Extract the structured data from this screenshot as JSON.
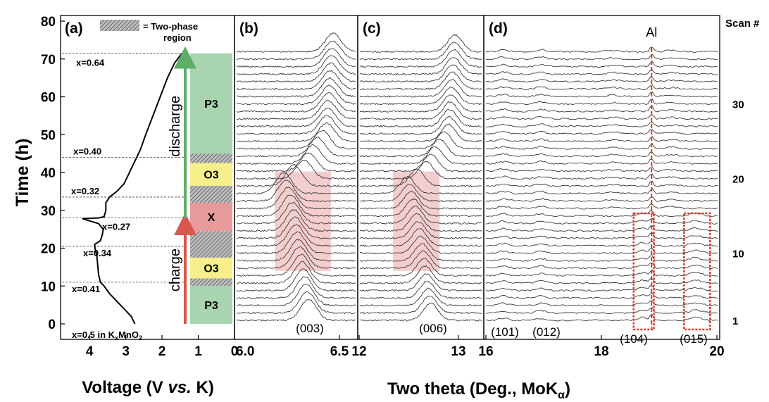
{
  "colors": {
    "two_phase_fill": "#8a8a8a",
    "p3_fill": "#a8d5b0",
    "o3_fill": "#f6ef8c",
    "x_fill": "#e79a9a",
    "highlight": "#f3c9ca",
    "discharge_arrow": "#5fad69",
    "charge_arrow": "#d8584d",
    "al_line": "#e0302a",
    "box_line": "#d63a2e",
    "trace": "#3a3a3a"
  },
  "chart_data": [
    {
      "panel": "(a)",
      "type": "line",
      "xlabel": "Voltage (V vs. K)",
      "ylabel": "Time (h)",
      "xlim": [
        4.8,
        0
      ],
      "ylim": [
        0,
        80
      ],
      "x_ticks": [
        "4",
        "3",
        "2",
        "1",
        "0"
      ],
      "y_ticks": [
        "0",
        "10",
        "20",
        "30",
        "40",
        "50",
        "60",
        "70",
        "80"
      ],
      "legend": "= Two-phase region",
      "voltage_curve": [
        {
          "x": 2.75,
          "y": 0
        },
        {
          "x": 2.85,
          "y": 2
        },
        {
          "x": 3.05,
          "y": 4
        },
        {
          "x": 3.25,
          "y": 6
        },
        {
          "x": 3.45,
          "y": 8
        },
        {
          "x": 3.6,
          "y": 10
        },
        {
          "x": 3.7,
          "y": 11
        },
        {
          "x": 3.75,
          "y": 13
        },
        {
          "x": 3.78,
          "y": 16
        },
        {
          "x": 3.8,
          "y": 18
        },
        {
          "x": 3.85,
          "y": 20
        },
        {
          "x": 3.86,
          "y": 21
        },
        {
          "x": 3.7,
          "y": 22
        },
        {
          "x": 3.65,
          "y": 23.5
        },
        {
          "x": 3.62,
          "y": 25
        },
        {
          "x": 3.75,
          "y": 26.5
        },
        {
          "x": 4.1,
          "y": 27.5
        },
        {
          "x": 4.2,
          "y": 27.8
        },
        {
          "x": 3.75,
          "y": 28
        },
        {
          "x": 3.6,
          "y": 28.3
        },
        {
          "x": 3.55,
          "y": 30
        },
        {
          "x": 3.55,
          "y": 32
        },
        {
          "x": 3.45,
          "y": 33.5
        },
        {
          "x": 3.25,
          "y": 35
        },
        {
          "x": 3.05,
          "y": 37
        },
        {
          "x": 2.9,
          "y": 40
        },
        {
          "x": 2.75,
          "y": 43
        },
        {
          "x": 2.6,
          "y": 46
        },
        {
          "x": 2.45,
          "y": 50
        },
        {
          "x": 2.25,
          "y": 55
        },
        {
          "x": 2.05,
          "y": 60
        },
        {
          "x": 1.85,
          "y": 65
        },
        {
          "x": 1.65,
          "y": 69
        },
        {
          "x": 1.45,
          "y": 71.5
        }
      ],
      "levels": [
        {
          "label": "x=0.5 in KxMnO2",
          "y": 0
        },
        {
          "label": "x=0.41",
          "y": 11
        },
        {
          "label": "x=0.34",
          "y": 20.5
        },
        {
          "label": "x=0.27",
          "y": 28
        },
        {
          "label": "x=0.32",
          "y": 33.5
        },
        {
          "label": "x=0.40",
          "y": 44
        },
        {
          "label": "x=0.64",
          "y": 71.5
        }
      ],
      "phases": [
        {
          "label": "P3",
          "from": 0,
          "to": 10,
          "kind": "P3"
        },
        {
          "label": "",
          "from": 10,
          "to": 12,
          "kind": "two-phase"
        },
        {
          "label": "O3",
          "from": 12,
          "to": 17.5,
          "kind": "O3"
        },
        {
          "label": "",
          "from": 17.5,
          "to": 24.5,
          "kind": "two-phase"
        },
        {
          "label": "X",
          "from": 24.5,
          "to": 32,
          "kind": "X"
        },
        {
          "label": "",
          "from": 32,
          "to": 36.5,
          "kind": "two-phase"
        },
        {
          "label": "O3",
          "from": 36.5,
          "to": 42.5,
          "kind": "O3"
        },
        {
          "label": "",
          "from": 42.5,
          "to": 45,
          "kind": "two-phase"
        },
        {
          "label": "P3",
          "from": 45,
          "to": 71.5,
          "kind": "P3"
        }
      ],
      "arrows": [
        {
          "label": "charge",
          "from": 0,
          "to": 27.5
        },
        {
          "label": "discharge",
          "from": 28,
          "to": 71.5
        }
      ]
    },
    {
      "panel": "(b)",
      "type": "line",
      "xlim": [
        6.0,
        6.5
      ],
      "x_ticks": [
        "6.0",
        "6.5"
      ],
      "peak_label": "(003)",
      "scans": 37,
      "peak_center_by_scan": [
        {
          "scan": 1,
          "x": 6.32
        },
        {
          "scan": 10,
          "x": 6.27
        },
        {
          "scan": 14,
          "x": 6.25
        },
        {
          "scan": 18,
          "x": 6.21
        },
        {
          "scan": 20,
          "x": 6.3
        },
        {
          "scan": 25,
          "x": 6.4
        },
        {
          "scan": 37,
          "x": 6.43
        }
      ],
      "highlight": {
        "x": [
          6.17,
          6.42
        ],
        "scans": [
          8,
          20
        ]
      }
    },
    {
      "panel": "(c)",
      "type": "line",
      "xlim": [
        12,
        13
      ],
      "x_ticks": [
        "12",
        "13"
      ],
      "peak_label": "(006)",
      "scans": 37,
      "peak_center_by_scan": [
        {
          "scan": 1,
          "x": 12.64
        },
        {
          "scan": 10,
          "x": 12.55
        },
        {
          "scan": 14,
          "x": 12.5
        },
        {
          "scan": 18,
          "x": 12.43
        },
        {
          "scan": 20,
          "x": 12.6
        },
        {
          "scan": 25,
          "x": 12.8
        },
        {
          "scan": 37,
          "x": 12.86
        }
      ],
      "highlight": {
        "x": [
          12.3,
          12.72
        ],
        "scans": [
          8,
          20
        ]
      }
    },
    {
      "panel": "(d)",
      "type": "line",
      "xlim": [
        16,
        20
      ],
      "x_ticks": [
        "16",
        "18",
        "20"
      ],
      "xlabel": "Two theta (Deg., MoKα)",
      "peak_labels": [
        {
          "label": "(101)",
          "x": 16.3
        },
        {
          "label": "(012)",
          "x": 16.95
        },
        {
          "label": "(104)",
          "x": 18.6
        },
        {
          "label": "(015)",
          "x": 19.6
        }
      ],
      "al_peak": {
        "label": "Al",
        "x": 18.86
      },
      "boxes": [
        {
          "x": [
            18.55,
            18.9
          ],
          "scans": [
            0,
            15
          ]
        },
        {
          "x": [
            19.42,
            19.87
          ],
          "scans": [
            0,
            15
          ]
        }
      ],
      "scans": 37
    }
  ],
  "scan_axis": {
    "title": "Scan #",
    "ticks": [
      "1",
      "10",
      "20",
      "30"
    ]
  },
  "legend_swatch_text": "= Two-phase",
  "legend_swatch_text2": "region"
}
